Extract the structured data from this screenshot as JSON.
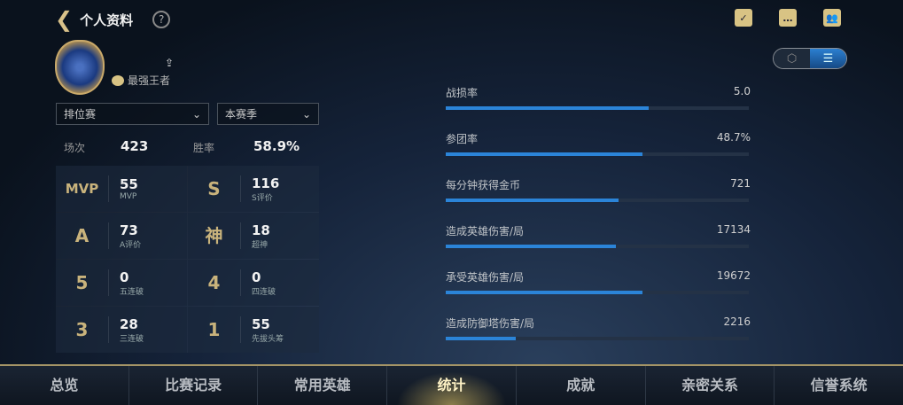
{
  "header": {
    "title": "个人资料",
    "back_icon": "back-chevron-icon",
    "help_icon": "?"
  },
  "top_icons": [
    "task-icon",
    "chat-icon",
    "friends-icon"
  ],
  "view_toggle": {
    "options": [
      "hexagon-view-icon",
      "list-view-icon"
    ],
    "selected": "list-view-icon"
  },
  "profile": {
    "rank": "最强王者"
  },
  "filters": {
    "mode": "排位赛",
    "season": "本赛季"
  },
  "summary": {
    "games_label": "场次",
    "games": "423",
    "winrate_label": "胜率",
    "winrate": "58.9%"
  },
  "badges": [
    {
      "icon": "MVP",
      "value": "55",
      "label": "MVP"
    },
    {
      "icon": "S",
      "value": "116",
      "label": "S评价"
    },
    {
      "icon": "A",
      "value": "73",
      "label": "A评价"
    },
    {
      "icon": "神",
      "value": "18",
      "label": "超神"
    },
    {
      "icon": "5",
      "value": "0",
      "label": "五连破"
    },
    {
      "icon": "4",
      "value": "0",
      "label": "四连破"
    },
    {
      "icon": "3",
      "value": "28",
      "label": "三连破"
    },
    {
      "icon": "1",
      "value": "55",
      "label": "先拔头筹"
    }
  ],
  "stats": [
    {
      "label": "战损率",
      "value": "5.0",
      "percent": 67
    },
    {
      "label": "参团率",
      "value": "48.7%",
      "percent": 65
    },
    {
      "label": "每分钟获得金币",
      "value": "721",
      "percent": 57
    },
    {
      "label": "造成英雄伤害/局",
      "value": "17134",
      "percent": 56
    },
    {
      "label": "承受英雄伤害/局",
      "value": "19672",
      "percent": 65
    },
    {
      "label": "造成防御塔伤害/局",
      "value": "2216",
      "percent": 23
    }
  ],
  "nav": [
    "总览",
    "比赛记录",
    "常用英雄",
    "统计",
    "成就",
    "亲密关系",
    "信誉系统"
  ],
  "nav_active": 3,
  "colors": {
    "accent": "#2b84d8",
    "gold": "#c9b37c"
  }
}
